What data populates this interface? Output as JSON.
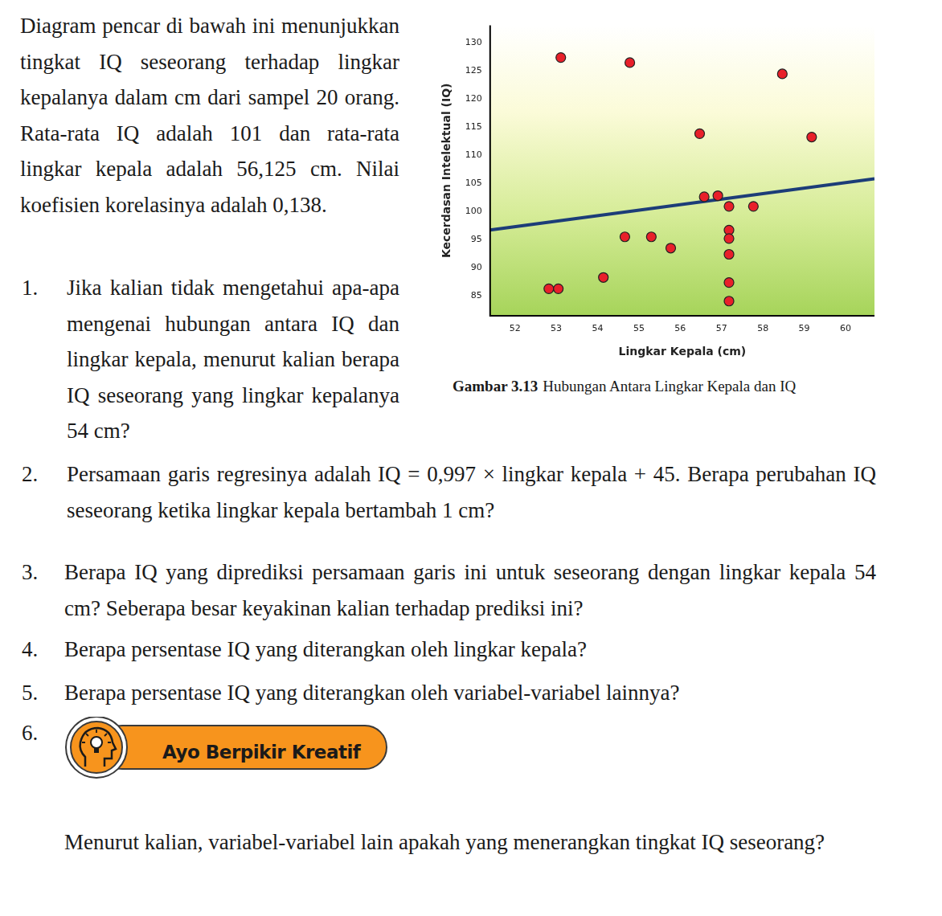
{
  "document": {
    "intro": "Diagram pencar di bawah ini menunjukkan tingkat IQ seseorang terhadap lingkar kepalanya dalam cm dari sampel 20 orang. Rata-rata IQ adalah 101 dan rata-rata lingkar kepala adalah 56,125 cm. Nilai koefisien korelasinya adalah 0,138.",
    "caption": {
      "label": "Gambar 3.13",
      "text": "Hubungan Antara Lingkar Kepala dan IQ"
    },
    "questions": [
      {
        "number": "1.",
        "text": "Jika kalian tidak mengetahui apa-apa mengenai hubungan antara IQ dan lingkar kepala, menurut kalian berapa IQ seseorang yang lingkar kepalanya 54 cm?"
      },
      {
        "number": "2.",
        "text": "Persamaan garis regresinya adalah IQ = 0,997 × lingkar kepala + 45. Berapa perubahan IQ seseorang ketika lingkar kepala bertambah 1 cm?"
      },
      {
        "number": "3.",
        "text": "Berapa IQ yang diprediksi persamaan garis ini untuk seseorang dengan lingkar kepala 54 cm? Seberapa besar keyakinan kalian terhadap prediksi ini?"
      },
      {
        "number": "4.",
        "text": "Berapa persentase IQ yang diterangkan oleh lingkar kepala?"
      },
      {
        "number": "5.",
        "text": "Berapa persentase IQ yang diterangkan oleh variabel-variabel lainnya?"
      },
      {
        "number": "6.",
        "badge": "Ayo Berpikir Kreatif",
        "text": "Menurut kalian, variabel-variabel lain apakah yang menerangkan tingkat IQ seseorang?"
      }
    ]
  },
  "chart_data": {
    "type": "scatter",
    "x_label": "Lingkar Kepala (cm)",
    "y_label": "Kecerdasan Intelektual (IQ)",
    "xlim": [
      51.4,
      60.7
    ],
    "xticks": [
      52,
      53,
      54,
      55,
      56,
      57,
      58,
      59,
      60
    ],
    "ylim": [
      81.5,
      133
    ],
    "yticks": [
      85,
      90,
      95,
      100,
      105,
      110,
      115,
      120,
      125,
      130
    ],
    "grid": false,
    "points": {
      "x": [
        53.11,
        54.78,
        58.47,
        56.47,
        59.18,
        56.58,
        56.91,
        57.18,
        57.77,
        57.18,
        57.18,
        54.66,
        55.3,
        55.77,
        57.18,
        54.14,
        52.82,
        53.05,
        57.18,
        57.18
      ],
      "y": [
        127.3,
        126.4,
        124.4,
        113.8,
        113.2,
        102.6,
        102.8,
        100.9,
        100.9,
        96.7,
        95.2,
        95.5,
        95.5,
        93.5,
        92.4,
        88.3,
        86.3,
        86.3,
        87.4,
        84.1
      ],
      "color": "#e8202a",
      "marker": "circle"
    },
    "trend_line": {
      "x": [
        51.4,
        60.7
      ],
      "y": [
        96.7,
        105.8
      ],
      "color": "#1c3d78",
      "line_style": "solid"
    }
  }
}
